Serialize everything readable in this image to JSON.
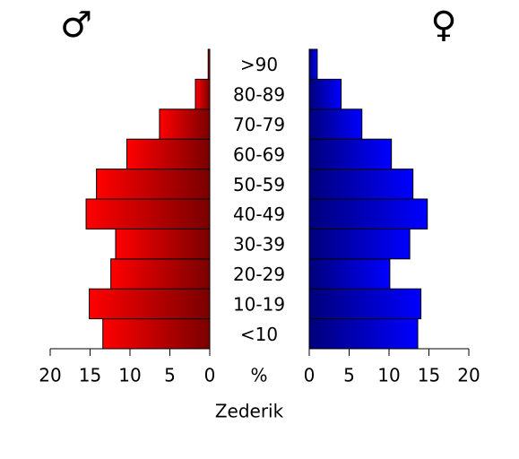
{
  "chart_data": {
    "type": "pyramid",
    "categories": [
      "<10",
      "10-19",
      "20-29",
      "30-39",
      "40-49",
      "50-59",
      "60-69",
      "70-79",
      "80-89",
      ">90"
    ],
    "series": [
      {
        "name": "♂",
        "color": [
          "#ff0000",
          "#7a0000"
        ],
        "values": [
          13.4,
          15.1,
          12.4,
          11.8,
          15.5,
          14.2,
          10.4,
          6.3,
          1.8,
          0.2
        ]
      },
      {
        "name": "♀",
        "color": [
          "#00007a",
          "#0000ff"
        ],
        "values": [
          13.6,
          14.0,
          10.1,
          12.6,
          14.8,
          13.0,
          10.3,
          6.6,
          4.0,
          1.0
        ]
      }
    ],
    "xlim": [
      0,
      20
    ],
    "xticks": [
      0,
      5,
      10,
      15,
      20
    ],
    "center_label": "%",
    "xlabel": "Zederik"
  }
}
